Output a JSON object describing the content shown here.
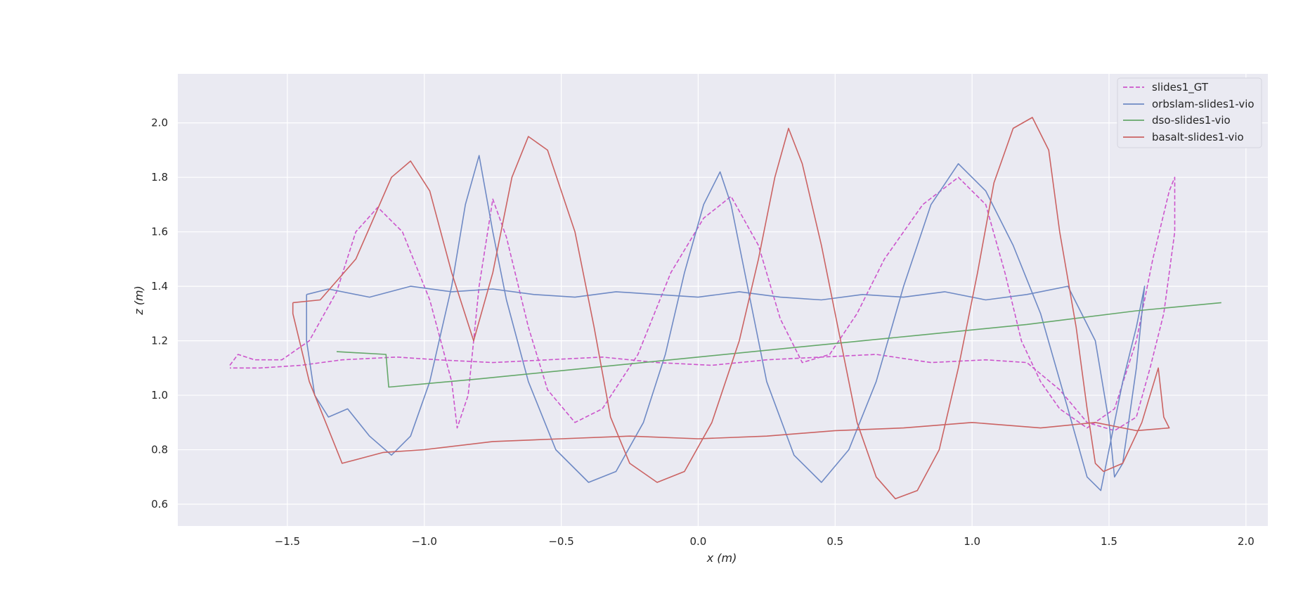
{
  "chart_data": {
    "type": "line",
    "xlabel": "x (m)",
    "ylabel": "z (m)",
    "xlim": [
      -1.9,
      2.08
    ],
    "ylim": [
      0.52,
      2.18
    ],
    "xticks": [
      -1.5,
      -1.0,
      -0.5,
      0.0,
      0.5,
      1.0,
      1.5,
      2.0
    ],
    "xtick_labels": [
      "−1.5",
      "−1.0",
      "−0.5",
      "0.0",
      "0.5",
      "1.0",
      "1.5",
      "2.0"
    ],
    "yticks": [
      0.6,
      0.8,
      1.0,
      1.2,
      1.4,
      1.6,
      1.8,
      2.0
    ],
    "ytick_labels": [
      "0.6",
      "0.8",
      "1.0",
      "1.2",
      "1.4",
      "1.6",
      "1.8",
      "2.0"
    ],
    "grid": true,
    "legend_position": "top-right",
    "style": {
      "background": "#eaeaf2",
      "grid_color": "#ffffff"
    },
    "series": [
      {
        "name": "slides1_GT",
        "color": "#cc55cc",
        "dash": "dashed",
        "points": [
          [
            -1.71,
            1.11
          ],
          [
            -1.68,
            1.15
          ],
          [
            -1.62,
            1.13
          ],
          [
            -1.52,
            1.13
          ],
          [
            -1.42,
            1.2
          ],
          [
            -1.32,
            1.38
          ],
          [
            -1.25,
            1.6
          ],
          [
            -1.17,
            1.69
          ],
          [
            -1.08,
            1.6
          ],
          [
            -0.98,
            1.35
          ],
          [
            -0.9,
            1.05
          ],
          [
            -0.88,
            0.88
          ],
          [
            -0.84,
            1.0
          ],
          [
            -0.8,
            1.4
          ],
          [
            -0.75,
            1.72
          ],
          [
            -0.7,
            1.58
          ],
          [
            -0.62,
            1.25
          ],
          [
            -0.55,
            1.02
          ],
          [
            -0.45,
            0.9
          ],
          [
            -0.35,
            0.95
          ],
          [
            -0.22,
            1.15
          ],
          [
            -0.1,
            1.45
          ],
          [
            0.02,
            1.65
          ],
          [
            0.12,
            1.73
          ],
          [
            0.22,
            1.55
          ],
          [
            0.3,
            1.28
          ],
          [
            0.38,
            1.12
          ],
          [
            0.48,
            1.15
          ],
          [
            0.58,
            1.3
          ],
          [
            0.68,
            1.5
          ],
          [
            0.82,
            1.7
          ],
          [
            0.95,
            1.8
          ],
          [
            1.05,
            1.7
          ],
          [
            1.12,
            1.45
          ],
          [
            1.18,
            1.2
          ],
          [
            1.25,
            1.05
          ],
          [
            1.32,
            0.95
          ],
          [
            1.42,
            0.88
          ],
          [
            1.52,
            0.95
          ],
          [
            1.6,
            1.2
          ],
          [
            1.66,
            1.5
          ],
          [
            1.72,
            1.75
          ],
          [
            1.74,
            1.8
          ],
          [
            1.74,
            1.6
          ],
          [
            1.7,
            1.3
          ],
          [
            1.65,
            1.1
          ],
          [
            1.6,
            0.92
          ],
          [
            1.52,
            0.87
          ],
          [
            1.42,
            0.9
          ],
          [
            1.32,
            1.02
          ],
          [
            1.2,
            1.12
          ],
          [
            1.05,
            1.13
          ],
          [
            0.85,
            1.12
          ],
          [
            0.65,
            1.15
          ],
          [
            0.45,
            1.14
          ],
          [
            0.25,
            1.13
          ],
          [
            0.05,
            1.11
          ],
          [
            -0.15,
            1.12
          ],
          [
            -0.35,
            1.14
          ],
          [
            -0.55,
            1.13
          ],
          [
            -0.75,
            1.12
          ],
          [
            -0.95,
            1.13
          ],
          [
            -1.1,
            1.14
          ],
          [
            -1.3,
            1.13
          ],
          [
            -1.45,
            1.11
          ],
          [
            -1.6,
            1.1
          ],
          [
            -1.71,
            1.1
          ]
        ]
      },
      {
        "name": "orbslam-slides1-vio",
        "color": "#6f8ac5",
        "dash": "solid",
        "points": [
          [
            -1.43,
            1.37
          ],
          [
            -1.35,
            1.39
          ],
          [
            -1.2,
            1.36
          ],
          [
            -1.05,
            1.4
          ],
          [
            -0.9,
            1.38
          ],
          [
            -0.75,
            1.39
          ],
          [
            -0.6,
            1.37
          ],
          [
            -0.45,
            1.36
          ],
          [
            -0.3,
            1.38
          ],
          [
            -0.15,
            1.37
          ],
          [
            0.0,
            1.36
          ],
          [
            0.15,
            1.38
          ],
          [
            0.3,
            1.36
          ],
          [
            0.45,
            1.35
          ],
          [
            0.6,
            1.37
          ],
          [
            0.75,
            1.36
          ],
          [
            0.9,
            1.38
          ],
          [
            1.05,
            1.35
          ],
          [
            1.2,
            1.37
          ],
          [
            1.35,
            1.4
          ],
          [
            1.45,
            1.2
          ],
          [
            1.5,
            0.9
          ],
          [
            1.52,
            0.7
          ],
          [
            1.55,
            0.75
          ],
          [
            1.6,
            1.1
          ],
          [
            1.63,
            1.4
          ],
          [
            1.6,
            1.25
          ],
          [
            1.55,
            1.05
          ],
          [
            1.5,
            0.8
          ],
          [
            1.47,
            0.65
          ],
          [
            1.42,
            0.7
          ],
          [
            1.35,
            0.95
          ],
          [
            1.25,
            1.3
          ],
          [
            1.15,
            1.55
          ],
          [
            1.05,
            1.75
          ],
          [
            0.95,
            1.85
          ],
          [
            0.85,
            1.7
          ],
          [
            0.75,
            1.4
          ],
          [
            0.65,
            1.05
          ],
          [
            0.55,
            0.8
          ],
          [
            0.45,
            0.68
          ],
          [
            0.35,
            0.78
          ],
          [
            0.25,
            1.05
          ],
          [
            0.18,
            1.4
          ],
          [
            0.12,
            1.7
          ],
          [
            0.08,
            1.82
          ],
          [
            0.02,
            1.7
          ],
          [
            -0.05,
            1.45
          ],
          [
            -0.12,
            1.15
          ],
          [
            -0.2,
            0.9
          ],
          [
            -0.3,
            0.72
          ],
          [
            -0.4,
            0.68
          ],
          [
            -0.52,
            0.8
          ],
          [
            -0.62,
            1.05
          ],
          [
            -0.7,
            1.35
          ],
          [
            -0.75,
            1.6
          ],
          [
            -0.8,
            1.88
          ],
          [
            -0.85,
            1.7
          ],
          [
            -0.9,
            1.4
          ],
          [
            -0.98,
            1.05
          ],
          [
            -1.05,
            0.85
          ],
          [
            -1.12,
            0.78
          ],
          [
            -1.2,
            0.85
          ],
          [
            -1.28,
            0.95
          ],
          [
            -1.35,
            0.92
          ],
          [
            -1.4,
            1.0
          ],
          [
            -1.43,
            1.2
          ],
          [
            -1.43,
            1.37
          ]
        ]
      },
      {
        "name": "dso-slides1-vio",
        "color": "#65a86a",
        "dash": "solid",
        "points": [
          [
            -1.32,
            1.16
          ],
          [
            -1.14,
            1.15
          ],
          [
            -1.13,
            1.03
          ],
          [
            -0.8,
            1.06
          ],
          [
            -0.4,
            1.1
          ],
          [
            0.0,
            1.14
          ],
          [
            0.4,
            1.18
          ],
          [
            0.8,
            1.22
          ],
          [
            1.2,
            1.26
          ],
          [
            1.6,
            1.31
          ],
          [
            1.91,
            1.34
          ]
        ]
      },
      {
        "name": "basalt-slides1-vio",
        "color": "#cb6363",
        "dash": "solid",
        "points": [
          [
            -1.48,
            1.34
          ],
          [
            -1.38,
            1.35
          ],
          [
            -1.25,
            1.5
          ],
          [
            -1.12,
            1.8
          ],
          [
            -1.05,
            1.86
          ],
          [
            -0.98,
            1.75
          ],
          [
            -0.9,
            1.45
          ],
          [
            -0.82,
            1.2
          ],
          [
            -0.75,
            1.45
          ],
          [
            -0.68,
            1.8
          ],
          [
            -0.62,
            1.95
          ],
          [
            -0.55,
            1.9
          ],
          [
            -0.45,
            1.6
          ],
          [
            -0.38,
            1.25
          ],
          [
            -0.32,
            0.92
          ],
          [
            -0.25,
            0.75
          ],
          [
            -0.15,
            0.68
          ],
          [
            -0.05,
            0.72
          ],
          [
            0.05,
            0.9
          ],
          [
            0.15,
            1.2
          ],
          [
            0.22,
            1.5
          ],
          [
            0.28,
            1.8
          ],
          [
            0.33,
            1.98
          ],
          [
            0.38,
            1.85
          ],
          [
            0.45,
            1.55
          ],
          [
            0.52,
            1.2
          ],
          [
            0.58,
            0.9
          ],
          [
            0.65,
            0.7
          ],
          [
            0.72,
            0.62
          ],
          [
            0.8,
            0.65
          ],
          [
            0.88,
            0.8
          ],
          [
            0.95,
            1.1
          ],
          [
            1.02,
            1.45
          ],
          [
            1.08,
            1.78
          ],
          [
            1.15,
            1.98
          ],
          [
            1.22,
            2.02
          ],
          [
            1.28,
            1.9
          ],
          [
            1.32,
            1.6
          ],
          [
            1.38,
            1.25
          ],
          [
            1.42,
            0.95
          ],
          [
            1.45,
            0.75
          ],
          [
            1.48,
            0.72
          ],
          [
            1.55,
            0.75
          ],
          [
            1.62,
            0.9
          ],
          [
            1.68,
            1.1
          ],
          [
            1.7,
            0.92
          ],
          [
            1.72,
            0.88
          ],
          [
            1.6,
            0.87
          ],
          [
            1.45,
            0.9
          ],
          [
            1.25,
            0.88
          ],
          [
            1.0,
            0.9
          ],
          [
            0.75,
            0.88
          ],
          [
            0.5,
            0.87
          ],
          [
            0.25,
            0.85
          ],
          [
            0.0,
            0.84
          ],
          [
            -0.25,
            0.85
          ],
          [
            -0.5,
            0.84
          ],
          [
            -0.75,
            0.83
          ],
          [
            -1.0,
            0.8
          ],
          [
            -1.15,
            0.79
          ],
          [
            -1.3,
            0.75
          ],
          [
            -1.42,
            1.05
          ],
          [
            -1.48,
            1.3
          ],
          [
            -1.48,
            1.34
          ]
        ]
      }
    ]
  }
}
